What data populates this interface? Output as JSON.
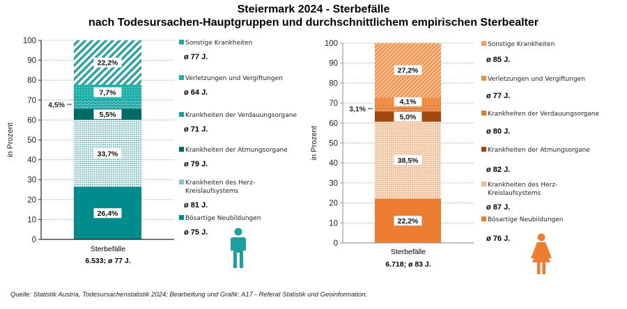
{
  "title": "Steiermark 2024 - Sterbefälle",
  "subtitle": "nach Todesursachen-Hauptgruppen und durchschnittlichem empirischen Sterbealter",
  "source": "Quelle: Statistik Austria, Todesursachenstatistik 2024; Bearbeitung und Grafik: A17 - Referat Statistik und Geoinformation.",
  "chart_data": [
    {
      "type": "bar",
      "stacked": true,
      "gender": "male",
      "ylabel": "in Prozent",
      "ylim": [
        0,
        100
      ],
      "yticks": [
        "0",
        "10",
        "20",
        "30",
        "40",
        "50",
        "60",
        "70",
        "80",
        "90",
        "100"
      ],
      "grid": true,
      "category": "Sterbefälle",
      "summary": "6.533; ø 77 J.",
      "series": [
        {
          "name": "Bösartige Neubildungen",
          "value": 26.4,
          "label": "26,4%",
          "age": "ø 75 J.",
          "color": "#008C8C",
          "pattern": "solid"
        },
        {
          "name": "Krankheiten des Herz-Kreislaufsystems",
          "value": 33.7,
          "label": "33,7%",
          "age": "ø 81 J.",
          "color": "#7FC6C6",
          "pattern": "dots"
        },
        {
          "name": "Krankheiten der Atmungsorgane",
          "value": 5.5,
          "label": "5,5%",
          "age": "ø 79 J.",
          "color": "#006B64",
          "pattern": "solid"
        },
        {
          "name": "Krankheiten der Verdauungsorgane",
          "value": 4.5,
          "label": "4,5%",
          "age": "ø 71 J.",
          "color": "#13A3A0",
          "pattern": "wave"
        },
        {
          "name": "Verletzungen und Vergiftungen",
          "value": 7.7,
          "label": "7,7%",
          "age": "ø 64 J.",
          "color": "#1FB0AA",
          "pattern": "finedots"
        },
        {
          "name": "Sonstige Krankheiten",
          "value": 22.2,
          "label": "22,2%",
          "age": "ø 77 J.",
          "color": "#2BA39E",
          "pattern": "diag"
        }
      ]
    },
    {
      "type": "bar",
      "stacked": true,
      "gender": "female",
      "ylabel": "in Prozent",
      "ylim": [
        0,
        100
      ],
      "yticks": [
        "0",
        "10",
        "20",
        "30",
        "40",
        "50",
        "60",
        "70",
        "80",
        "90",
        "100"
      ],
      "grid": true,
      "category": "Sterbefälle",
      "summary": "6.718; ø 83 J.",
      "series": [
        {
          "name": "Bösartige Neubildungen",
          "value": 22.2,
          "label": "22,2%",
          "age": "ø 76 J.",
          "color": "#ED7D31",
          "pattern": "solid"
        },
        {
          "name": "Krankheiten des Herz-Kreislaufsystems",
          "value": 38.5,
          "label": "38,5%",
          "age": "ø 87 J.",
          "color": "#F4B98E",
          "pattern": "dots"
        },
        {
          "name": "Krankheiten der Atmungsorgane",
          "value": 5.0,
          "label": "5,0%",
          "age": "ø 82 J.",
          "color": "#A0480F",
          "pattern": "solid"
        },
        {
          "name": "Krankheiten der Verdauungsorgane",
          "value": 3.1,
          "label": "3,1%",
          "age": "ø 80 J.",
          "color": "#E0772F",
          "pattern": "wave"
        },
        {
          "name": "Verletzungen und Vergiftungen",
          "value": 4.1,
          "label": "4,1%",
          "age": "ø 77 J.",
          "color": "#EF8A3E",
          "pattern": "finedots"
        },
        {
          "name": "Sonstige Krankheiten",
          "value": 27.2,
          "label": "27,2%",
          "age": "ø 85 J.",
          "color": "#F0A060",
          "pattern": "diag"
        }
      ]
    }
  ]
}
